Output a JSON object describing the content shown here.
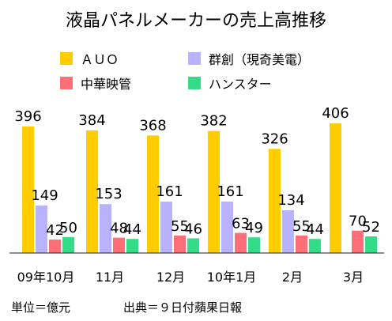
{
  "chart_data": {
    "type": "bar",
    "title": "液晶パネルメーカーの売上高推移",
    "categories": [
      "09年10月",
      "11月",
      "12月",
      "10年1月",
      "2月",
      "3月"
    ],
    "series": [
      {
        "name": "ＡＵＯ",
        "color": "#ffcc00",
        "values": [
          396,
          384,
          368,
          382,
          326,
          406
        ]
      },
      {
        "name": "群創（現奇美電）",
        "color": "#b9b3ff",
        "values": [
          149,
          153,
          161,
          161,
          134,
          null
        ]
      },
      {
        "name": "中華映管",
        "color": "#ff6f78",
        "values": [
          42,
          48,
          55,
          63,
          55,
          70
        ]
      },
      {
        "name": "ハンスター",
        "color": "#33dd88",
        "values": [
          50,
          44,
          46,
          49,
          44,
          52
        ]
      }
    ],
    "ylim": [
      0,
      420
    ],
    "grid": false,
    "legend_position": "top"
  },
  "footer": {
    "unit": "単位＝億元",
    "source": "出典＝９日付蘋果日報"
  }
}
